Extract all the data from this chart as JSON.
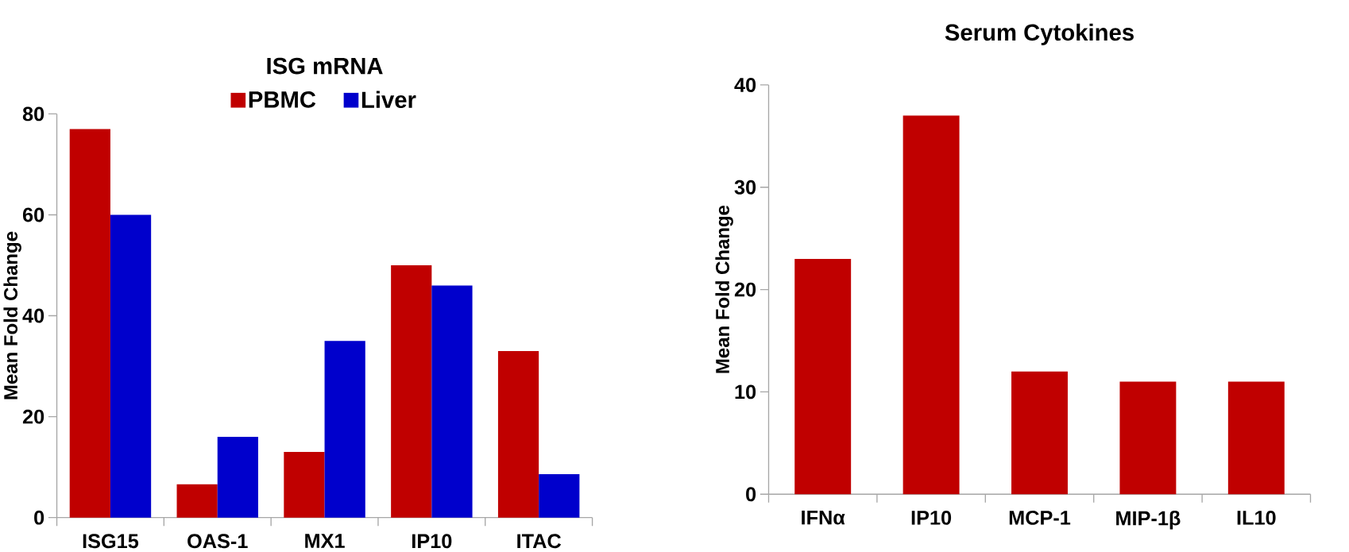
{
  "chart_data": [
    {
      "type": "bar",
      "title": "ISG mRNA",
      "ylabel": "Mean Fold Change",
      "categories": [
        "ISG15",
        "OAS-1",
        "MX1",
        "IP10",
        "ITAC"
      ],
      "series": [
        {
          "name": "PBMC",
          "color": "#c00000",
          "values": [
            77,
            6.6,
            13,
            50,
            33
          ]
        },
        {
          "name": "Liver",
          "color": "#0000cc",
          "values": [
            60,
            16,
            35,
            46,
            8.6
          ]
        }
      ],
      "ylim": [
        0,
        80
      ],
      "yticks": [
        0,
        20,
        40,
        60,
        80
      ],
      "legend": "top",
      "grid": false
    },
    {
      "type": "bar",
      "title": "Serum Cytokines",
      "ylabel": "Mean Fold Change",
      "categories": [
        "IFNα",
        "IP10",
        "MCP-1",
        "MIP-1β",
        "IL10"
      ],
      "series": [
        {
          "color": "#c00000",
          "values": [
            23,
            37,
            12,
            11,
            11
          ]
        }
      ],
      "ylim": [
        0,
        40
      ],
      "yticks": [
        0,
        10,
        20,
        30,
        40
      ],
      "legend": false,
      "grid": false
    }
  ]
}
